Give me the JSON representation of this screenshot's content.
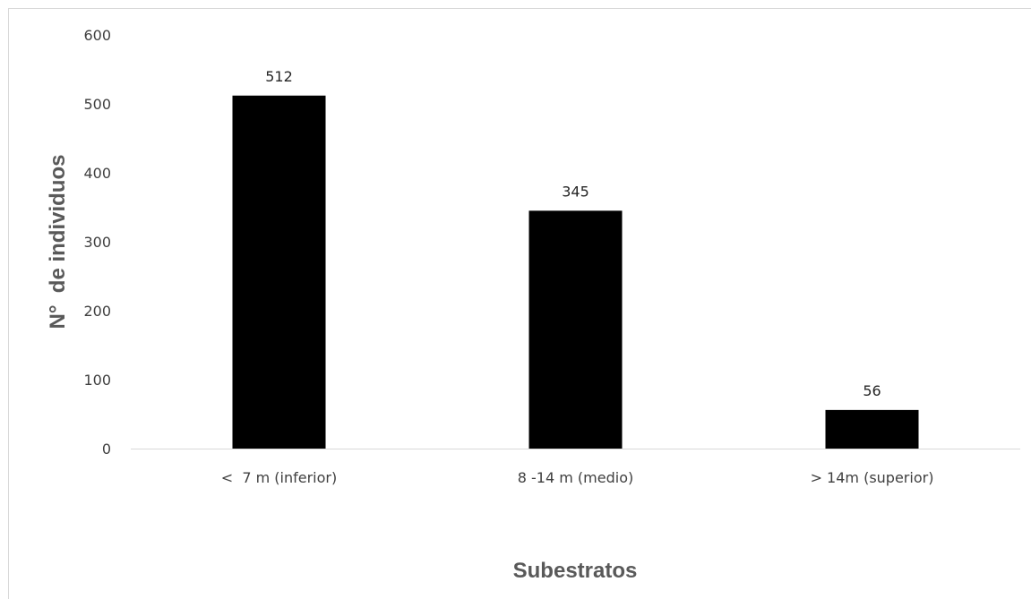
{
  "chart_data": {
    "type": "bar",
    "title": "",
    "xlabel": "Subestratos",
    "ylabel": "N°  de individuos",
    "categories": [
      "<  7 m (inferior)",
      "8 -14 m (medio)",
      "> 14m (superior)"
    ],
    "values": [
      512,
      345,
      56
    ],
    "data_labels": [
      "512",
      "345",
      "56"
    ],
    "ylim": [
      0,
      600
    ],
    "yticks": [
      0,
      100,
      200,
      300,
      400,
      500,
      600
    ],
    "grid": false,
    "legend": "none",
    "bar_color": "#000000",
    "axis_color": "#d9d9d9"
  }
}
